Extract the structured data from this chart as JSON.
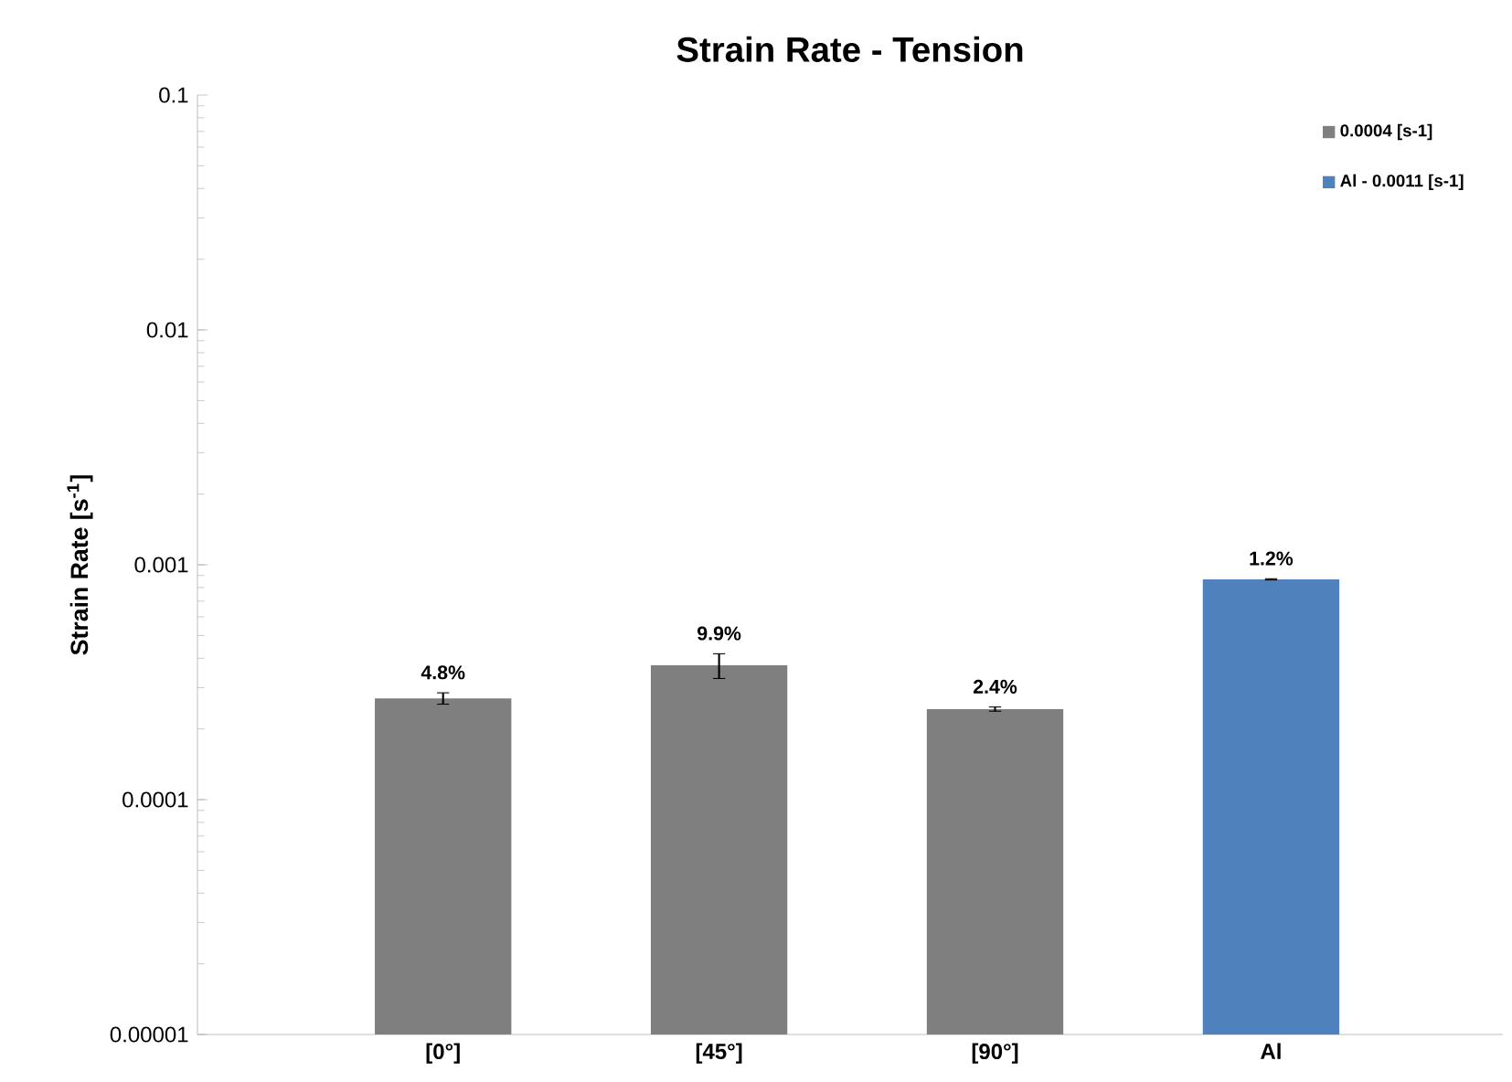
{
  "chart_data": {
    "type": "bar",
    "title": "Strain Rate - Tension",
    "ylabel": "Strain Rate [s$^{-1}$]",
    "categories": [
      "[0°]",
      "[45°]",
      "[90°]",
      "Al"
    ],
    "series": [
      {
        "name": "0.0004 [s-1]",
        "color": "#7f7f7f",
        "values": [
          0.00027,
          0.000373,
          0.000243,
          null
        ],
        "errors": [
          1.5e-05,
          4.5e-05,
          5e-06,
          null
        ]
      },
      {
        "name": "Al - 0.0011 [s-1]",
        "color": "#4f81bd",
        "values": [
          null,
          null,
          null,
          0.000867
        ],
        "errors": [
          null,
          null,
          null,
          5e-06
        ]
      }
    ],
    "annotations": [
      {
        "text": "4.8%",
        "x": "[0°]",
        "y": 0.000285
      },
      {
        "text": "9.9%",
        "x": "[45°]",
        "y": 0.000418
      },
      {
        "text": "2.4%",
        "x": "[90°]",
        "y": 0.000248
      },
      {
        "text": "1.2%",
        "x": "Al",
        "y": 0.000872
      }
    ],
    "log": "y",
    "ylim": [
      1e-05,
      0.1
    ],
    "yticks": [
      {
        "value": 1e-05,
        "label": "0.00001"
      },
      0.0001,
      0.001,
      0.01,
      0.1
    ],
    "legend": "top right",
    "grid": false
  }
}
